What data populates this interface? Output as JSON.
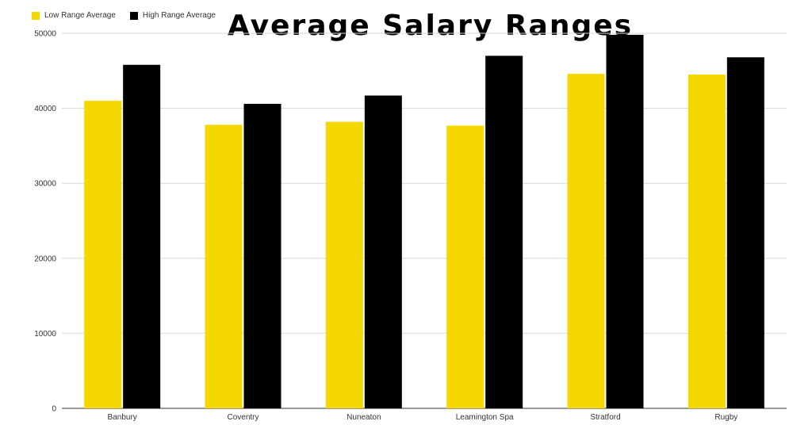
{
  "chart_data": {
    "type": "bar",
    "title": "Average Salary Ranges",
    "xlabel": "",
    "ylabel": "",
    "categories": [
      "Banbury",
      "Coventry",
      "Nuneaton",
      "Leamington Spa",
      "Stratford",
      "Rugby"
    ],
    "series": [
      {
        "name": "Low Range Average",
        "color": "#F5D800",
        "values": [
          41000,
          37800,
          38200,
          37700,
          44600,
          44500
        ]
      },
      {
        "name": "High Range Average",
        "color": "#000000",
        "values": [
          45800,
          40600,
          41700,
          47000,
          49800,
          46800
        ]
      }
    ],
    "ylim": [
      0,
      50000
    ],
    "yticks": [
      0,
      10000,
      20000,
      30000,
      40000,
      50000
    ],
    "grid": true,
    "legend_position": "top-left"
  }
}
